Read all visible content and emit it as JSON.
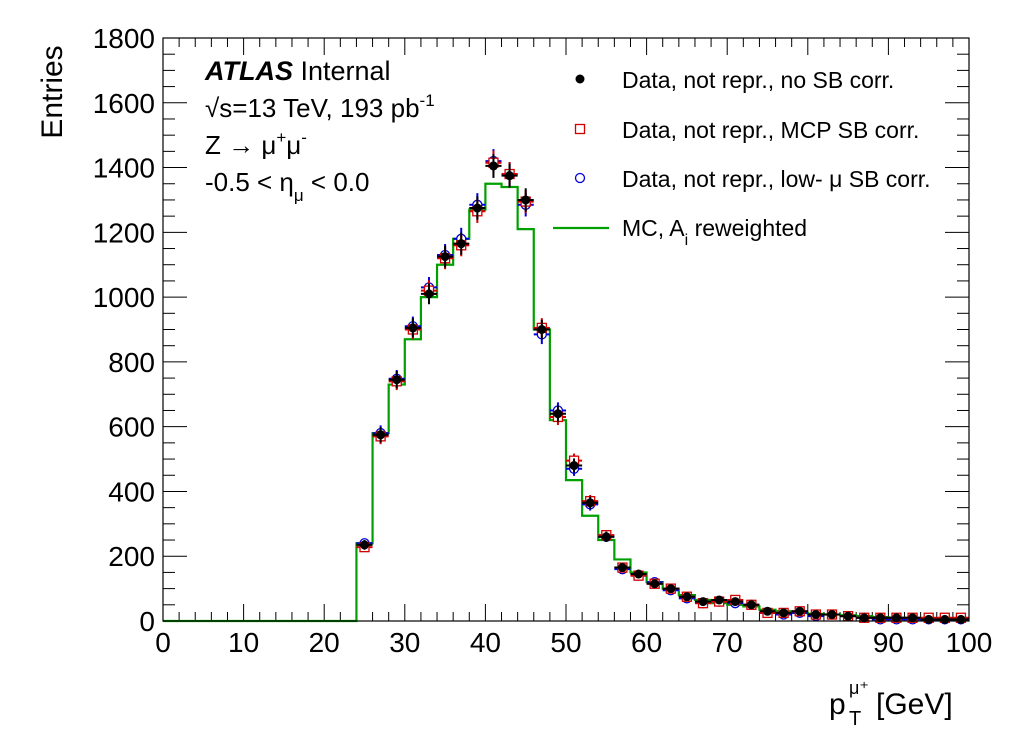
{
  "chart_data": {
    "type": "histogram",
    "xlabel_main": "p",
    "xlabel_sup": "μ⁺",
    "xlabel_sub": "T",
    "xlabel_unit": " [GeV]",
    "ylabel": "Entries",
    "xlim": [
      0,
      100
    ],
    "ylim": [
      0,
      1800
    ],
    "x_ticks": [
      0,
      10,
      20,
      30,
      40,
      50,
      60,
      70,
      80,
      90,
      100
    ],
    "y_ticks": [
      0,
      200,
      400,
      600,
      800,
      1000,
      1200,
      1400,
      1600,
      1800
    ],
    "bin_width": 2,
    "annotations": {
      "atlas": "ATLAS",
      "internal": " Internal",
      "energy_root": "√",
      "energy_main": "s=13 TeV, 193 pb",
      "energy_sup": "-1",
      "process_main": "Z → μ",
      "process_sup1": "+",
      "process_mu2": "μ",
      "process_sup2": "-",
      "eta_left": "-0.5 < η",
      "eta_sub": "μ",
      "eta_right": " < 0.0"
    },
    "legend": {
      "position": "top-right",
      "entries": [
        {
          "label": "Data, not repr., no SB corr."
        },
        {
          "label": "Data, not repr., MCP SB corr."
        },
        {
          "label": "Data, not repr., low- μ SB corr."
        },
        {
          "label_main": "MC, A",
          "label_sub": "i",
          "label_rest": " reweighted"
        }
      ]
    },
    "colors": {
      "data_nocorr": "#000000",
      "data_mcp": "#d40000",
      "data_lowmu": "#0000d8",
      "mc": "#00a000"
    },
    "mc_hist": {
      "bin_edges": [
        0,
        24,
        26,
        28,
        30,
        32,
        34,
        36,
        38,
        40,
        42,
        44,
        46,
        48,
        50,
        52,
        54,
        56,
        58,
        60,
        62,
        64,
        66,
        68,
        70,
        72,
        74,
        76,
        78,
        80,
        82,
        84,
        86,
        88,
        90,
        92,
        94,
        96,
        98,
        100
      ],
      "values": [
        0,
        240,
        580,
        730,
        870,
        1000,
        1100,
        1180,
        1270,
        1350,
        1340,
        1210,
        900,
        620,
        435,
        325,
        250,
        190,
        150,
        120,
        100,
        80,
        65,
        55,
        50,
        45,
        35,
        30,
        25,
        22,
        20,
        18,
        15,
        12,
        10,
        8,
        6,
        5,
        4
      ]
    },
    "data_x": [
      25,
      27,
      29,
      31,
      33,
      35,
      37,
      39,
      41,
      43,
      45,
      47,
      49,
      51,
      53,
      55,
      57,
      59,
      61,
      63,
      65,
      67,
      69,
      71,
      73,
      75,
      77,
      79,
      81,
      83,
      85,
      87,
      89,
      91,
      93,
      95,
      97,
      99
    ],
    "series": [
      {
        "key": "data_nocorr",
        "marker": "dot",
        "values": [
          235,
          575,
          745,
          905,
          1010,
          1125,
          1165,
          1275,
          1405,
          1375,
          1300,
          900,
          640,
          480,
          365,
          260,
          165,
          145,
          115,
          100,
          75,
          60,
          65,
          60,
          50,
          30,
          25,
          30,
          20,
          20,
          15,
          10,
          10,
          10,
          10,
          5,
          5,
          5
        ],
        "errors": [
          15,
          24,
          27,
          30,
          32,
          34,
          34,
          36,
          37,
          37,
          36,
          30,
          25,
          22,
          19,
          16,
          13,
          12,
          11,
          10,
          9,
          8,
          8,
          8,
          7,
          6,
          5,
          6,
          5,
          5,
          4,
          4,
          4,
          4,
          4,
          3,
          3,
          3
        ]
      },
      {
        "key": "data_mcp",
        "marker": "square",
        "values": [
          228,
          570,
          740,
          900,
          1020,
          1120,
          1160,
          1265,
          1415,
          1380,
          1295,
          905,
          630,
          495,
          370,
          265,
          165,
          140,
          115,
          100,
          75,
          55,
          60,
          65,
          50,
          25,
          25,
          30,
          20,
          20,
          15,
          10,
          10,
          10,
          10,
          10,
          10,
          10
        ],
        "errors": [
          15,
          24,
          27,
          30,
          32,
          34,
          34,
          36,
          37,
          37,
          36,
          30,
          25,
          22,
          19,
          16,
          13,
          12,
          11,
          10,
          9,
          8,
          8,
          8,
          7,
          6,
          5,
          6,
          5,
          5,
          4,
          4,
          4,
          4,
          4,
          3,
          3,
          3
        ]
      },
      {
        "key": "data_lowmu",
        "marker": "circle",
        "values": [
          240,
          580,
          748,
          910,
          1030,
          1130,
          1180,
          1285,
          1420,
          1380,
          1285,
          885,
          650,
          470,
          360,
          260,
          160,
          140,
          120,
          95,
          70,
          55,
          60,
          55,
          50,
          25,
          20,
          25,
          15,
          20,
          15,
          10,
          5,
          5,
          5,
          5,
          5,
          5
        ],
        "errors": [
          15,
          24,
          27,
          30,
          32,
          34,
          34,
          36,
          37,
          37,
          36,
          30,
          25,
          22,
          19,
          16,
          13,
          12,
          11,
          10,
          9,
          8,
          8,
          8,
          7,
          6,
          5,
          6,
          5,
          5,
          4,
          4,
          4,
          4,
          4,
          3,
          3,
          3
        ]
      }
    ]
  }
}
